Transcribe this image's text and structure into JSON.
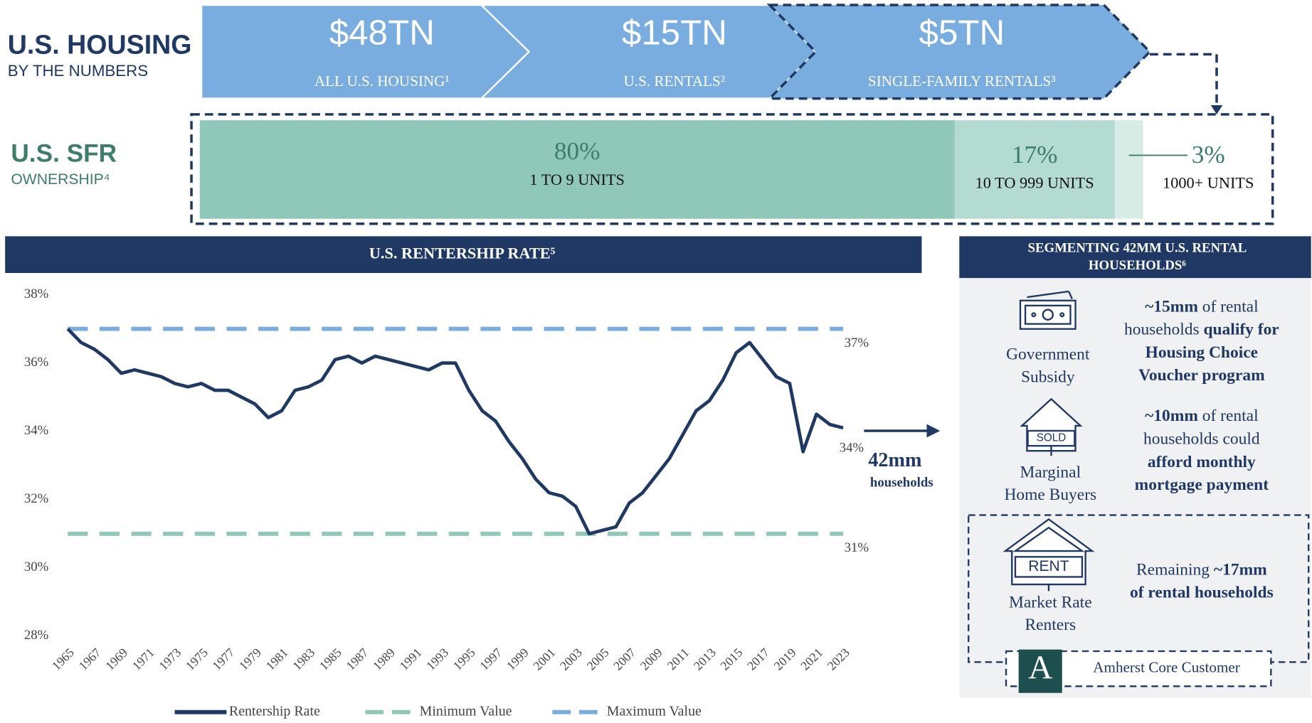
{
  "header": {
    "title": "U.S. HOUSING",
    "subtitle": "BY THE NUMBERS"
  },
  "chevrons": [
    {
      "value": "$48TN",
      "label": "ALL U.S. HOUSING¹"
    },
    {
      "value": "$15TN",
      "label": "U.S. RENTALS²"
    },
    {
      "value": "$5TN",
      "label": "SINGLE-FAMILY RENTALS³"
    }
  ],
  "chart_data": [
    {
      "type": "stacked-bar",
      "title": "U.S. SFR",
      "subtitle": "OWNERSHIP⁴",
      "categories": [
        "1 TO 9 UNITS",
        "10 TO 999 UNITS",
        "1000+ UNITS"
      ],
      "values": [
        80,
        17,
        3
      ],
      "value_labels": [
        "80%",
        "17%",
        "3%"
      ],
      "colors": [
        "#8fc7b8",
        "#b3dbd1",
        "#d8ece6"
      ]
    },
    {
      "type": "line",
      "title": "U.S. RENTERSHIP RATE⁵",
      "x": [
        1965,
        1966,
        1967,
        1968,
        1969,
        1970,
        1971,
        1972,
        1973,
        1974,
        1975,
        1976,
        1977,
        1978,
        1979,
        1980,
        1981,
        1982,
        1983,
        1984,
        1985,
        1986,
        1987,
        1988,
        1989,
        1990,
        1991,
        1992,
        1993,
        1994,
        1995,
        1996,
        1997,
        1998,
        1999,
        2000,
        2001,
        2002,
        2003,
        2004,
        2005,
        2006,
        2007,
        2008,
        2009,
        2010,
        2011,
        2012,
        2013,
        2014,
        2015,
        2016,
        2017,
        2018,
        2019,
        2020,
        2021,
        2022,
        2023
      ],
      "series": [
        {
          "name": "Rentership Rate",
          "color": "#1f3864",
          "values": [
            37.0,
            36.6,
            36.4,
            36.1,
            35.7,
            35.8,
            35.7,
            35.6,
            35.4,
            35.3,
            35.4,
            35.2,
            35.2,
            35.0,
            34.8,
            34.4,
            34.6,
            35.2,
            35.3,
            35.5,
            36.1,
            36.2,
            36.0,
            36.2,
            36.1,
            36.0,
            35.9,
            35.8,
            36.0,
            36.0,
            35.2,
            34.6,
            34.3,
            33.7,
            33.2,
            32.6,
            32.2,
            32.1,
            31.8,
            31.0,
            31.1,
            31.2,
            31.9,
            32.2,
            32.7,
            33.2,
            33.9,
            34.6,
            34.9,
            35.5,
            36.3,
            36.6,
            36.1,
            35.6,
            35.4,
            33.4,
            34.5,
            34.2,
            34.1
          ],
          "last_value_label": "34%"
        }
      ],
      "reference_lines": [
        {
          "name": "Minimum Value",
          "value": 31,
          "label": "31%",
          "color": "#8fc7b8"
        },
        {
          "name": "Maximum Value",
          "value": 37,
          "label": "37%",
          "color": "#7aaddf"
        }
      ],
      "xlim": [
        1965,
        2023
      ],
      "xticks": [
        1965,
        1967,
        1969,
        1971,
        1973,
        1975,
        1977,
        1979,
        1981,
        1983,
        1985,
        1987,
        1989,
        1991,
        1993,
        1995,
        1997,
        1999,
        2001,
        2003,
        2005,
        2007,
        2009,
        2011,
        2013,
        2015,
        2017,
        2019,
        2021,
        2023
      ],
      "ylim": [
        28,
        38
      ],
      "yticks": [
        {
          "value": 28,
          "label": "28%"
        },
        {
          "value": 30,
          "label": "30%"
        },
        {
          "value": 32,
          "label": "32%"
        },
        {
          "value": 34,
          "label": "34%"
        },
        {
          "value": 36,
          "label": "36%"
        },
        {
          "value": 38,
          "label": "38%"
        }
      ],
      "annotation": {
        "value": "42mm",
        "label": "households"
      }
    }
  ],
  "segments": {
    "title_lines": [
      "SEGMENTING 42MM U.S. RENTAL",
      "HOUSEHOLDS⁶"
    ],
    "items": [
      {
        "label_lines": [
          "Government",
          "Subsidy"
        ],
        "desc_lines": [
          [
            {
              "text": "~15mm",
              "bold": true
            },
            {
              "text": " of rental",
              "bold": false
            }
          ],
          [
            {
              "text": "households ",
              "bold": false
            },
            {
              "text": "qualify for",
              "bold": true
            }
          ],
          [
            {
              "text": "Housing Choice",
              "bold": true
            }
          ],
          [
            {
              "text": "Voucher program",
              "bold": true
            }
          ]
        ]
      },
      {
        "label_lines": [
          "Marginal",
          "Home Buyers"
        ],
        "icon_text": "SOLD",
        "desc_lines": [
          [
            {
              "text": "~10mm",
              "bold": true
            },
            {
              "text": " of rental",
              "bold": false
            }
          ],
          [
            {
              "text": "households could",
              "bold": false
            }
          ],
          [
            {
              "text": "afford monthly",
              "bold": true
            }
          ],
          [
            {
              "text": "mortgage payment",
              "bold": true
            }
          ]
        ]
      },
      {
        "label_lines": [
          "Market Rate",
          "Renters"
        ],
        "icon_text": "RENT",
        "desc_lines": [
          [
            {
              "text": "Remaining ",
              "bold": false
            },
            {
              "text": "~17mm",
              "bold": true
            }
          ],
          [
            {
              "text": "of rental households",
              "bold": true
            }
          ]
        ]
      }
    ],
    "footer": "Amherst Core Customer",
    "logo": "A"
  }
}
